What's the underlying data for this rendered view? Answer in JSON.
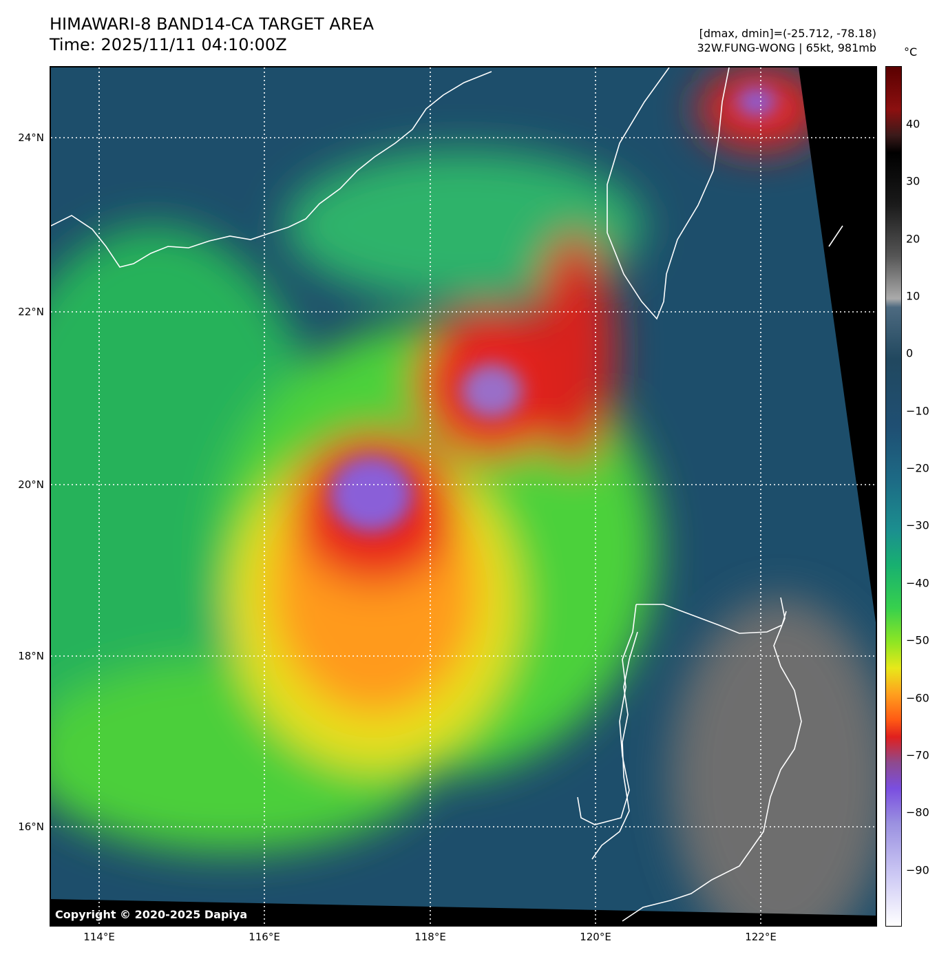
{
  "header": {
    "title": "HIMAWARI-8 BAND14-CA TARGET AREA",
    "time": "Time: 2025/11/11 04:10:00Z",
    "dminmax": "[dmax, dmin]=(-25.712, -78.18)",
    "storm": "32W.FUNG-WONG | 65kt, 981mb"
  },
  "map": {
    "copyright": "Copyright © 2020-2025 Dapiya",
    "lat_labels": [
      "24°N",
      "22°N",
      "20°N",
      "18°N",
      "16°N"
    ],
    "lon_labels": [
      "114°E",
      "116°E",
      "118°E",
      "120°E",
      "122°E"
    ]
  },
  "colorbar": {
    "unit": "°C",
    "ticks": [
      "40",
      "30",
      "20",
      "10",
      "0",
      "−10",
      "−20",
      "−30",
      "−40",
      "−50",
      "−60",
      "−70",
      "−80",
      "−90"
    ]
  }
}
